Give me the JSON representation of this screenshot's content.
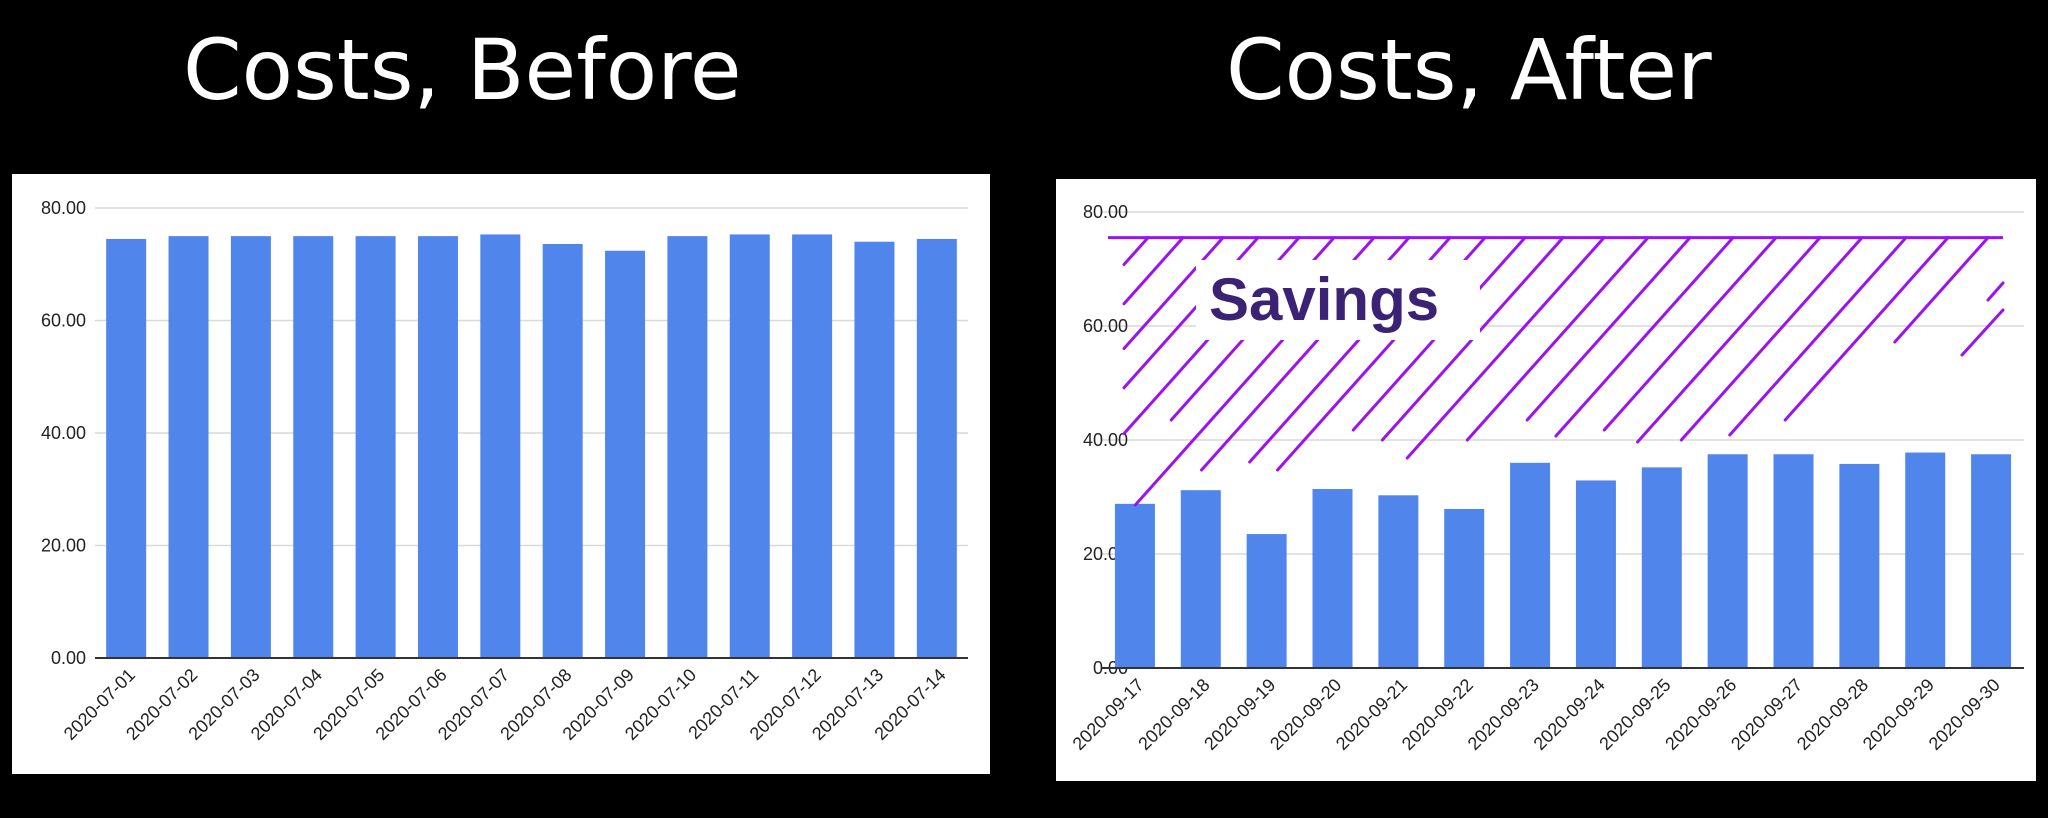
{
  "titles": {
    "before": "Costs, Before",
    "after": "Costs, After"
  },
  "annotation": {
    "savings_label": "Savings",
    "savings_line_value": 75.5
  },
  "colors": {
    "background": "#000000",
    "bar": "#5086ec",
    "savings": "#9b13f0",
    "savings_text": "#3c2275",
    "gridline": "#d9d9d9",
    "axis": "#333333"
  },
  "chart_data": [
    {
      "type": "bar",
      "title": "Costs, Before",
      "categories": [
        "2020-07-01",
        "2020-07-02",
        "2020-07-03",
        "2020-07-04",
        "2020-07-05",
        "2020-07-06",
        "2020-07-07",
        "2020-07-08",
        "2020-07-09",
        "2020-07-10",
        "2020-07-11",
        "2020-07-12",
        "2020-07-13",
        "2020-07-14"
      ],
      "values": [
        74.5,
        75.0,
        75.0,
        75.0,
        75.0,
        75.0,
        75.3,
        73.6,
        72.4,
        75.0,
        75.3,
        75.3,
        74.0,
        74.5
      ],
      "ylim": [
        0,
        80
      ],
      "yticks": [
        "0.00",
        "20.00",
        "40.00",
        "60.00",
        "80.00"
      ],
      "grid": true
    },
    {
      "type": "bar",
      "title": "Costs, After",
      "categories": [
        "2020-09-17",
        "2020-09-18",
        "2020-09-19",
        "2020-09-20",
        "2020-09-21",
        "2020-09-22",
        "2020-09-23",
        "2020-09-24",
        "2020-09-25",
        "2020-09-26",
        "2020-09-27",
        "2020-09-28",
        "2020-09-29",
        "2020-09-30"
      ],
      "values": [
        28.8,
        31.2,
        23.5,
        31.4,
        30.3,
        27.9,
        36.0,
        32.9,
        35.2,
        37.5,
        37.5,
        35.8,
        37.8,
        37.5
      ],
      "ylim": [
        0,
        80
      ],
      "yticks": [
        "0.00",
        "20.00",
        "40.00",
        "60.00",
        "80.00"
      ],
      "grid": true
    }
  ]
}
